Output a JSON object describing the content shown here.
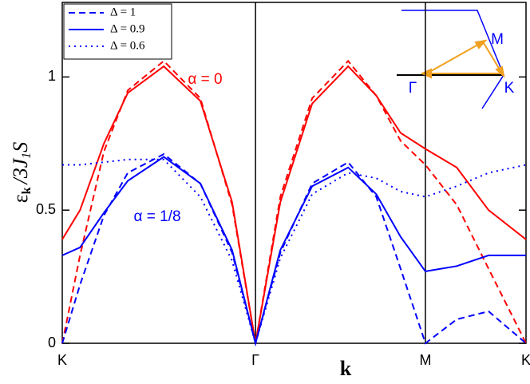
{
  "chart_data": {
    "type": "line",
    "ylabel": {
      "main": "ε",
      "sub1": "k",
      "mid": "/3J",
      "sub2": "1",
      "tail": "S"
    },
    "xlabel": "k",
    "annotations": [
      {
        "text": "α = 0",
        "color": "#ff0000"
      },
      {
        "text": "α = 1/8",
        "color": "#0000ff"
      }
    ],
    "inset_labels": {
      "gamma": "Γ",
      "m": "M",
      "k": "K"
    },
    "x": [
      0,
      0.38,
      0.89,
      1.4,
      2.17,
      2.95,
      3.63,
      4.13,
      4.66,
      5.34,
      6.11,
      6.71,
      7.23,
      7.76,
      8.43,
      9.11,
      9.91
    ],
    "series": [
      {
        "name": "Δ = 1",
        "color": "#ff0000",
        "dash": "dashed",
        "legend": false,
        "values": [
          0,
          0.33,
          0.72,
          0.95,
          1.06,
          0.92,
          0.52,
          0,
          0.55,
          0.92,
          1.06,
          0.93,
          0.76,
          0.67,
          0.52,
          0.28,
          0
        ]
      },
      {
        "name": "Δ = 0.9",
        "color": "#ff0000",
        "dash": "solid",
        "legend": false,
        "values": [
          0.39,
          0.5,
          0.75,
          0.94,
          1.04,
          0.91,
          0.53,
          0,
          0.53,
          0.9,
          1.04,
          0.93,
          0.79,
          0.73,
          0.66,
          0.5,
          0.39
        ]
      },
      {
        "name": "Δ = 1",
        "color": "#0000ff",
        "dash": "dashed",
        "legend": true,
        "values": [
          0,
          0.22,
          0.48,
          0.64,
          0.71,
          0.6,
          0.34,
          0,
          0.34,
          0.6,
          0.68,
          0.55,
          0.28,
          0,
          0.09,
          0.12,
          0
        ]
      },
      {
        "name": "Δ = 0.9",
        "color": "#0000ff",
        "dash": "solid",
        "legend": true,
        "values": [
          0.33,
          0.36,
          0.49,
          0.61,
          0.7,
          0.6,
          0.35,
          0,
          0.35,
          0.59,
          0.66,
          0.56,
          0.4,
          0.27,
          0.29,
          0.33,
          0.33
        ]
      },
      {
        "name": "Δ = 0.6",
        "color": "#0000ff",
        "dash": "dotted",
        "legend": true,
        "values": [
          0.67,
          0.67,
          0.68,
          0.69,
          0.69,
          0.55,
          0.31,
          0,
          0.32,
          0.56,
          0.64,
          0.62,
          0.57,
          0.55,
          0.59,
          0.64,
          0.67
        ]
      }
    ],
    "xlim": [
      0,
      9.91
    ],
    "xticks": [
      {
        "value": 0,
        "label": "K"
      },
      {
        "value": 4.13,
        "label": "Γ"
      },
      {
        "value": 7.76,
        "label": "M"
      },
      {
        "value": 9.91,
        "label": "K"
      }
    ],
    "ylim": [
      0,
      1.28
    ],
    "yticks": [
      0,
      0.5,
      1
    ],
    "legend": "upper left"
  }
}
